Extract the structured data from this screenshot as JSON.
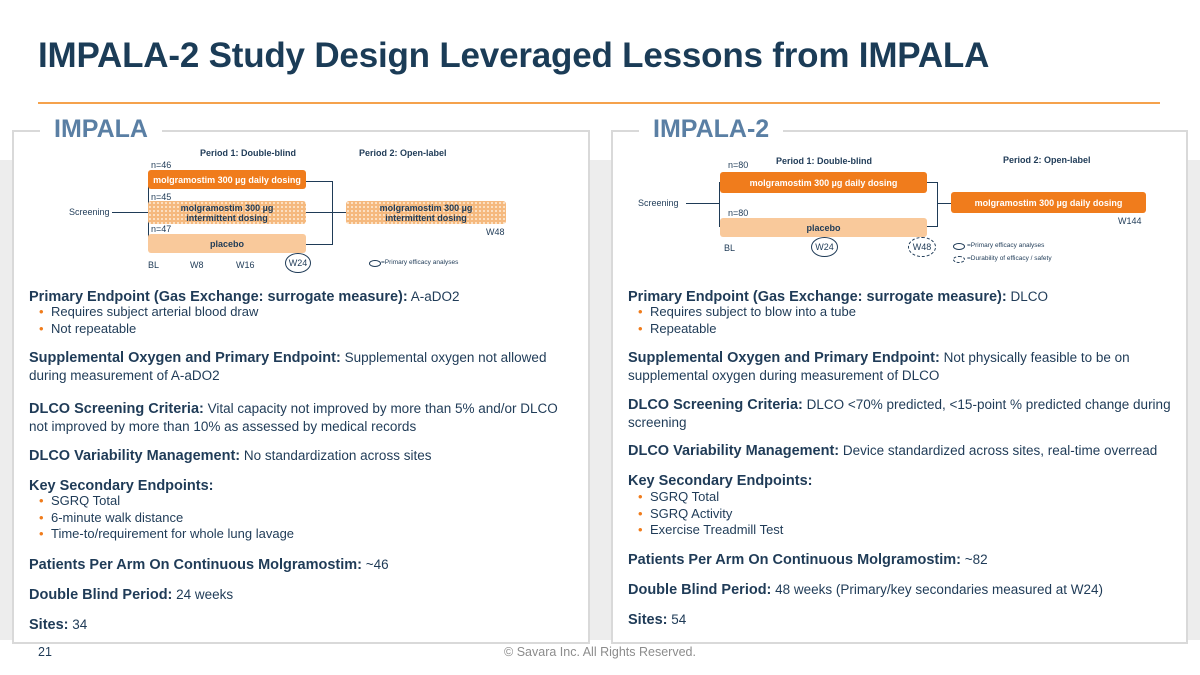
{
  "title": "IMPALA-2 Study Design Leveraged Lessons from IMPALA",
  "footer": {
    "page_number": "21",
    "copyright": "© Savara Inc. All Rights Reserved."
  },
  "colors": {
    "title": "#1b3c57",
    "accent_orange": "#f07c1c",
    "light_orange": "#f9c99b",
    "heading_blue": "#5a7fa4"
  },
  "left": {
    "heading": "IMPALA",
    "diagram": {
      "period1": "Period 1: Double-blind",
      "period2": "Period 2: Open-label",
      "screening": "Screening",
      "n1": "n=46",
      "n2": "n=45",
      "n3": "n=47",
      "arm1": "molgramostim 300 µg daily dosing",
      "arm2_line1": "molgramostim 300 µg",
      "arm2_line2": "intermittent dosing",
      "arm3": "placebo",
      "ol_line1": "molgramostim 300 µg",
      "ol_line2": "intermittent dosing",
      "w48": "W48",
      "timeline": [
        "BL",
        "W8",
        "W16",
        "W24"
      ],
      "legend_primary": "=Primary efficacy analyses"
    },
    "primary_label": "Primary Endpoint (Gas Exchange: surrogate measure):",
    "primary_value": " A-aDO2",
    "primary_bullets": [
      "Requires subject arterial blood draw",
      "Not repeatable"
    ],
    "supp_label": "Supplemental Oxygen and Primary Endpoint:",
    "supp_value": " Supplemental oxygen not allowed during measurement of A-aDO2",
    "dlco_label": "DLCO Screening Criteria:",
    "dlco_value": " Vital capacity not improved by more than 5% and/or DLCO not improved by more than 10% as assessed by medical records",
    "var_label": "DLCO Variability Management:",
    "var_value": " No standardization across sites",
    "key_label": "Key Secondary Endpoints:",
    "key_bullets": [
      "SGRQ Total",
      "6-minute walk distance",
      "Time-to/requirement for whole lung lavage"
    ],
    "patients_label": "Patients Per Arm On Continuous Molgramostim:",
    "patients_value": " ~46",
    "db_label": "Double Blind Period:",
    "db_value": " 24 weeks",
    "sites_label": "Sites:",
    "sites_value": " 34"
  },
  "right": {
    "heading": "IMPALA-2",
    "diagram": {
      "period1": "Period 1: Double-blind",
      "period2": "Period 2: Open-label",
      "screening": "Screening",
      "n1": "n=80",
      "n2": "n=80",
      "arm1": "molgramostim 300 µg daily dosing",
      "arm2": "placebo",
      "ol": "molgramostim 300 µg daily dosing",
      "w144": "W144",
      "timeline": [
        "BL",
        "W24",
        "W48"
      ],
      "legend_primary": "=Primary efficacy analyses",
      "legend_durability": "=Durability of efficacy / safety"
    },
    "primary_label": "Primary Endpoint (Gas Exchange: surrogate measure):",
    "primary_value": " DLCO",
    "primary_bullets": [
      "Requires subject to blow into a tube",
      "Repeatable"
    ],
    "supp_label": "Supplemental Oxygen and Primary Endpoint:",
    "supp_value": " Not physically feasible to be on supplemental oxygen during measurement of DLCO",
    "dlco_label": "DLCO Screening Criteria:",
    "dlco_value": " DLCO <70% predicted, <15-point % predicted change during screening",
    "var_label": "DLCO Variability Management:",
    "var_value": " Device standardized across sites, real-time overread",
    "key_label": "Key Secondary Endpoints:",
    "key_bullets": [
      "SGRQ Total",
      "SGRQ Activity",
      "Exercise Treadmill Test"
    ],
    "patients_label": "Patients Per Arm On Continuous Molgramostim:",
    "patients_value": " ~82",
    "db_label": "Double Blind Period:",
    "db_value": " 48 weeks (Primary/key secondaries measured at W24)",
    "sites_label": "Sites:",
    "sites_value": " 54"
  }
}
